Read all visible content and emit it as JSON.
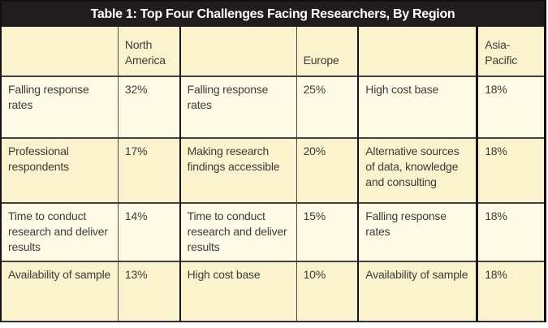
{
  "title": "Table 1: Top Four Challenges Facing Researchers, By Region",
  "header": {
    "blank1": "",
    "north_america": "North America",
    "blank2": "",
    "europe": "Europe",
    "blank3": "",
    "asia_pacific": "Asia-Pacific"
  },
  "rows": [
    [
      "Falling response rates",
      "32%",
      "Falling response rates",
      "25%",
      "High cost base",
      "18%"
    ],
    [
      "Professional respondents",
      "17%",
      "Making research findings accessible",
      "20%",
      "Alternative sources of data, knowledge and consulting",
      "18%"
    ],
    [
      "Time to conduct research and deliver results",
      "14%",
      "Time to conduct research and deliver results",
      "15%",
      "Falling response rates",
      "18%"
    ],
    [
      "Availability of sample",
      "13%",
      "High cost base",
      "10%",
      "Availability of sample",
      "18%"
    ]
  ],
  "colors": {
    "title_bar_bg": "#211d1e",
    "title_text": "#ffffff",
    "row_dark": "#faf3cd",
    "row_light": "#fdfbe6",
    "border_heavy": "#1b1718",
    "border_thin": "#4f4b47",
    "body_text": "#3f3c3a"
  },
  "chart_data": {
    "type": "table",
    "title": "Table 1: Top Four Challenges Facing Researchers, By Region",
    "columns": [
      "Challenge (North America)",
      "North America %",
      "Challenge (Europe)",
      "Europe %",
      "Challenge (Asia-Pacific)",
      "Asia-Pacific %"
    ],
    "regions": {
      "North America": [
        {
          "challenge": "Falling response rates",
          "value": 32
        },
        {
          "challenge": "Professional respondents",
          "value": 17
        },
        {
          "challenge": "Time to conduct research and deliver results",
          "value": 14
        },
        {
          "challenge": "Availability of sample",
          "value": 13
        }
      ],
      "Europe": [
        {
          "challenge": "Falling response rates",
          "value": 25
        },
        {
          "challenge": "Making research findings accessible",
          "value": 20
        },
        {
          "challenge": "Time to conduct research and deliver results",
          "value": 15
        },
        {
          "challenge": "High cost base",
          "value": 10
        }
      ],
      "Asia-Pacific": [
        {
          "challenge": "High cost base",
          "value": 18
        },
        {
          "challenge": "Alternative sources of data, knowledge and consulting",
          "value": 18
        },
        {
          "challenge": "Falling response rates",
          "value": 18
        },
        {
          "challenge": "Availability of sample",
          "value": 18
        }
      ]
    },
    "units": "percent"
  }
}
